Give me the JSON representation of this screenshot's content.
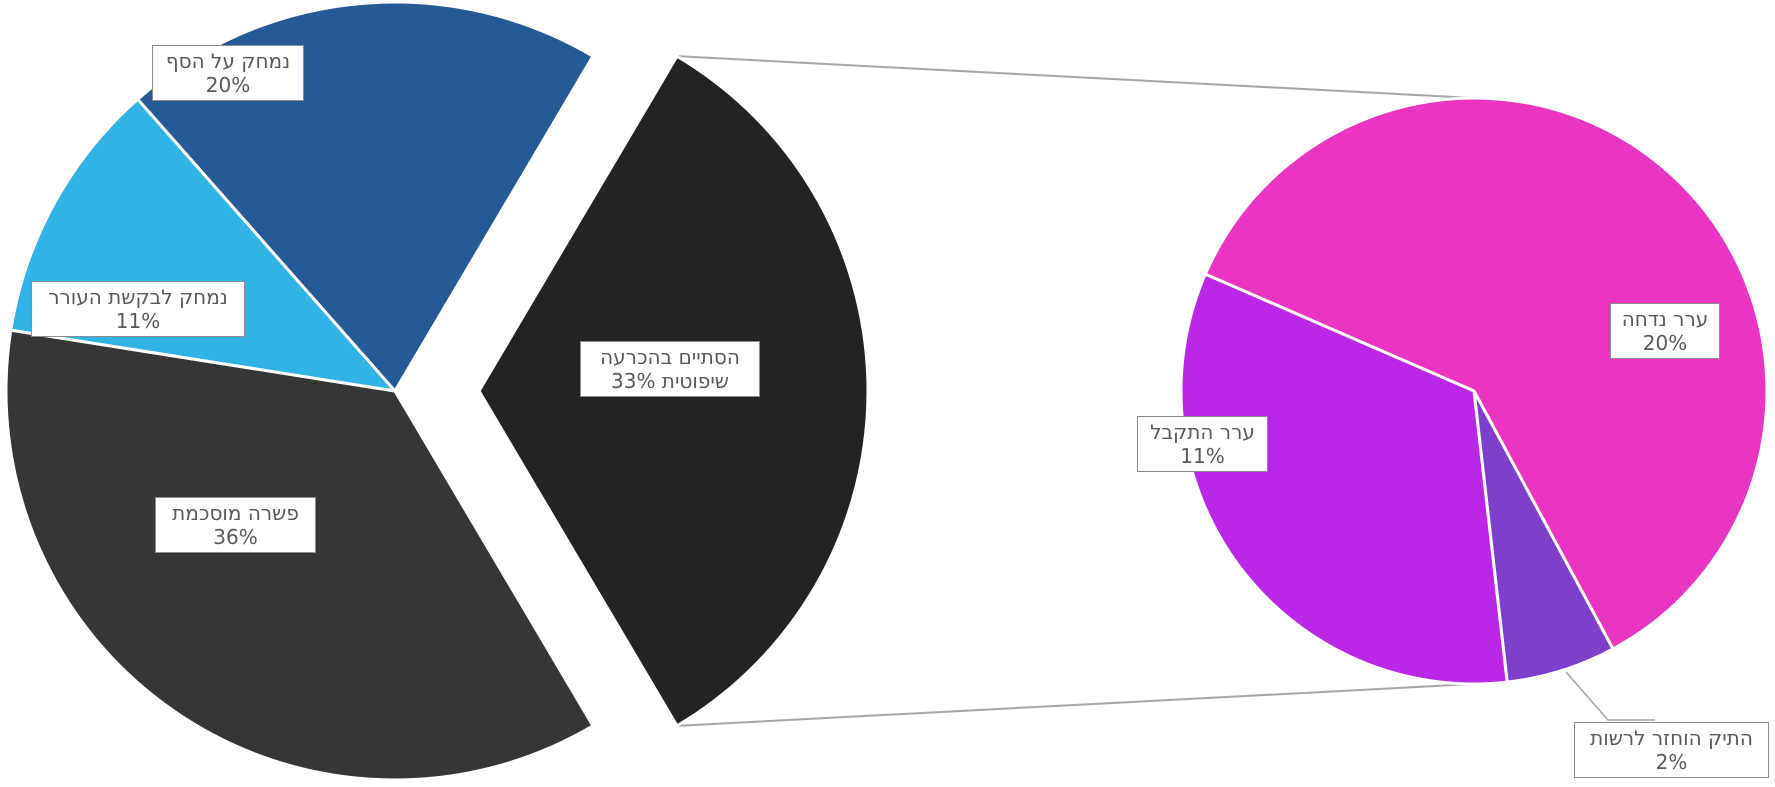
{
  "chart_data": {
    "type": "pie-of-pie",
    "main_pie": {
      "slices": [
        {
          "label": "נמחק על הסף",
          "value": 20,
          "value_text": "20%",
          "color": "#255A96"
        },
        {
          "label": "נמחק לבקשת העורר",
          "value": 11,
          "value_text": "11%",
          "color": "#31B3E6"
        },
        {
          "label": "פשרה מוסכמת",
          "value": 36,
          "value_text": "36%",
          "color": "#363636"
        },
        {
          "label_lines": [
            "הסתיים בהכרעה",
            "שיפוטית 33%"
          ],
          "label": "הסתיים בהכרעה שיפוטית",
          "value": 33,
          "value_text": "33%",
          "color": "#232323",
          "exploded": true
        }
      ]
    },
    "secondary_pie": {
      "slices": [
        {
          "label": "ערר נדחה",
          "value": 20,
          "value_text": "20%",
          "color": "#E935C1"
        },
        {
          "label": "התיק הוחזר לרשות",
          "value": 2,
          "value_text": "2%",
          "color": "#7E3FCB"
        },
        {
          "label": "ערר התקבל",
          "value": 11,
          "value_text": "11%",
          "color": "#BA27E6"
        }
      ]
    },
    "connector_color": "#a6a6a6",
    "label_border_color": "#8c8c8c",
    "label_text_color": "#595959"
  }
}
